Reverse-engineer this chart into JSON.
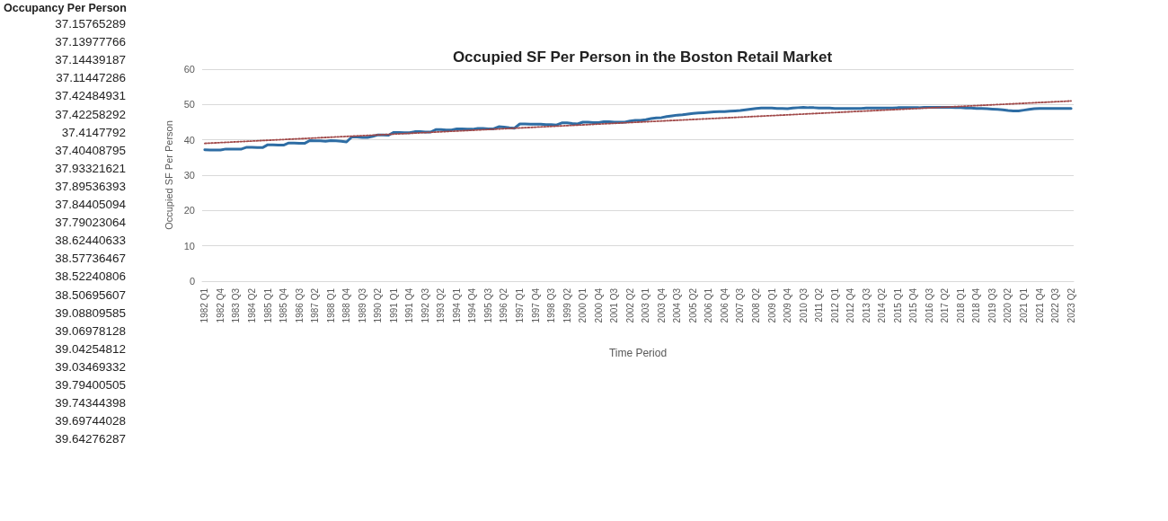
{
  "chart_data": [
    {
      "type": "other",
      "title": "Occupancy Per Person",
      "annotations": [
        "37.15765289",
        "37.13977766",
        "37.14439187",
        "37.11447286",
        "37.42484931",
        "37.42258292",
        "37.4147792",
        "37.40408795",
        "37.93321621",
        "37.89536393",
        "37.84405094",
        "37.79023064",
        "38.62440633",
        "38.57736467",
        "38.52240806",
        "38.50695607",
        "39.08809585",
        "39.06978128",
        "39.04254812",
        "39.03469332",
        "39.79400505",
        "39.74344398",
        "39.69744028",
        "39.64276287"
      ]
    },
    {
      "type": "line",
      "title": "Occupied SF Per Person in the Boston Retail Market",
      "xlabel": "Time Period",
      "ylabel": "Occupied SF Per Person",
      "categories": [
        "1982 Q1",
        null,
        null,
        "1982 Q4",
        null,
        null,
        "1983 Q3",
        null,
        null,
        "1984 Q2",
        null,
        null,
        "1985 Q1",
        null,
        null,
        "1985 Q4",
        null,
        null,
        "1986 Q3",
        null,
        null,
        "1987 Q2",
        null,
        null,
        "1988 Q1",
        null,
        null,
        "1988 Q4",
        null,
        null,
        "1989 Q3",
        null,
        null,
        "1990 Q2",
        null,
        null,
        "1991 Q1",
        null,
        null,
        "1991 Q4",
        null,
        null,
        "1992 Q3",
        null,
        null,
        "1993 Q2",
        null,
        null,
        "1994 Q1",
        null,
        null,
        "1994 Q4",
        null,
        null,
        "1995 Q3",
        null,
        null,
        "1996 Q2",
        null,
        null,
        "1997 Q1",
        null,
        null,
        "1997 Q4",
        null,
        null,
        "1998 Q3",
        null,
        null,
        "1999 Q2",
        null,
        null,
        "2000 Q1",
        null,
        null,
        "2000 Q4",
        null,
        null,
        "2001 Q3",
        null,
        null,
        "2002 Q2",
        null,
        null,
        "2003 Q1",
        null,
        null,
        "2003 Q4",
        null,
        null,
        "2004 Q3",
        null,
        null,
        "2005 Q2",
        null,
        null,
        "2006 Q1",
        null,
        null,
        "2006 Q4",
        null,
        null,
        "2007 Q3",
        null,
        null,
        "2008 Q2",
        null,
        null,
        "2009 Q1",
        null,
        null,
        "2009 Q4",
        null,
        null,
        "2010 Q3",
        null,
        null,
        "2011 Q2",
        null,
        null,
        "2012 Q1",
        null,
        null,
        "2012 Q4",
        null,
        null,
        "2013 Q3",
        null,
        null,
        "2014 Q2",
        null,
        null,
        "2015 Q1",
        null,
        null,
        "2015 Q4",
        null,
        null,
        "2016 Q3",
        null,
        null,
        "2017 Q2",
        null,
        null,
        "2018 Q1",
        null,
        null,
        "2018 Q4",
        null,
        null,
        "2019 Q3",
        null,
        null,
        "2020 Q2",
        null,
        null,
        "2021 Q1",
        null,
        null,
        "2021 Q4",
        null,
        null,
        "2022 Q3",
        null,
        null,
        "2023 Q2"
      ],
      "series": [
        {
          "color": "#2e6da4",
          "values": [
            37.2,
            37.1,
            37.1,
            37.1,
            37.4,
            37.4,
            37.4,
            37.4,
            37.9,
            37.9,
            37.8,
            37.8,
            38.6,
            38.6,
            38.5,
            38.5,
            39.1,
            39.1,
            39.0,
            39.0,
            39.8,
            39.7,
            39.7,
            39.6,
            39.8,
            39.7,
            39.6,
            39.4,
            40.8,
            40.8,
            40.7,
            40.7,
            41.0,
            41.4,
            41.4,
            41.3,
            42.1,
            42.1,
            42.0,
            42.0,
            42.3,
            42.3,
            42.2,
            42.2,
            42.9,
            42.9,
            42.8,
            42.8,
            43.1,
            43.1,
            43.0,
            43.0,
            43.2,
            43.2,
            43.1,
            43.1,
            43.7,
            43.6,
            43.4,
            43.3,
            44.5,
            44.5,
            44.4,
            44.4,
            44.4,
            44.3,
            44.3,
            44.2,
            44.8,
            44.8,
            44.6,
            44.5,
            45.0,
            45.0,
            44.9,
            44.9,
            45.1,
            45.1,
            45.0,
            45.0,
            45.0,
            45.3,
            45.5,
            45.5,
            45.7,
            46.0,
            46.2,
            46.3,
            46.6,
            46.8,
            47.0,
            47.1,
            47.3,
            47.5,
            47.6,
            47.7,
            47.8,
            47.9,
            48.0,
            48.0,
            48.1,
            48.2,
            48.3,
            48.5,
            48.7,
            48.9,
            49.0,
            49.0,
            49.0,
            48.9,
            48.9,
            48.8,
            49.0,
            49.1,
            49.2,
            49.1,
            49.1,
            49.0,
            49.0,
            49.0,
            48.9,
            48.9,
            48.9,
            48.9,
            48.9,
            48.9,
            49.0,
            49.0,
            49.0,
            49.0,
            49.0,
            49.0,
            49.1,
            49.1,
            49.1,
            49.1,
            49.1,
            49.2,
            49.2,
            49.2,
            49.2,
            49.2,
            49.2,
            49.1,
            49.1,
            49.0,
            49.0,
            48.9,
            48.9,
            48.8,
            48.7,
            48.6,
            48.5,
            48.3,
            48.2,
            48.2,
            48.4,
            48.6,
            48.8,
            48.9,
            48.9,
            48.9,
            48.9,
            48.9,
            48.9,
            48.9
          ]
        },
        {
          "type": "line",
          "color": "#a04848",
          "line_style": "dotted",
          "x": [
            "1982 Q1",
            "2023 Q2"
          ],
          "values": [
            39.0,
            51.0
          ]
        }
      ],
      "ylim": [
        0,
        60
      ],
      "yticks": [
        0,
        10,
        20,
        30,
        40,
        50,
        60
      ],
      "grid": "y",
      "marker": "none"
    }
  ]
}
